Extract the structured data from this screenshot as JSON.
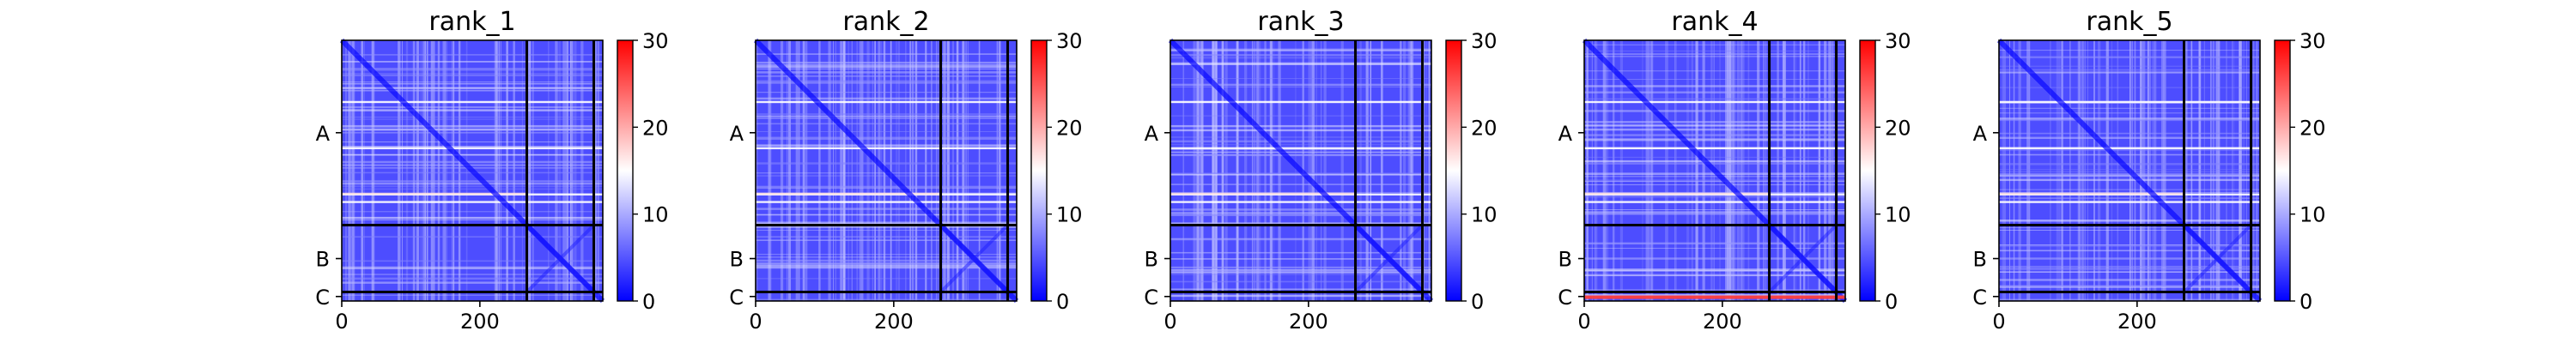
{
  "chart_data": {
    "type": "heatmap",
    "description_type": "pae_matrix_panels",
    "shared": {
      "x_ticks": [
        0,
        200
      ],
      "x_range": [
        0,
        378
      ],
      "y_range": [
        378,
        0
      ],
      "chain_labels": [
        "A",
        "B",
        "C"
      ],
      "chain_boundaries": [
        268,
        365
      ],
      "chain_label_positions": [
        134,
        316.5,
        371.5
      ],
      "colorbar": {
        "colormap": "bwr",
        "vmin": 0,
        "vmax": 30,
        "ticks": [
          "0",
          "10",
          "20",
          "30"
        ]
      },
      "grid": false
    },
    "panels": [
      {
        "title": "rank_1",
        "bright_rows": [
          88,
          155,
          222,
          233
        ],
        "hot_row": null
      },
      {
        "title": "rank_2",
        "bright_rows": [
          88,
          155,
          222,
          233
        ],
        "hot_row": null
      },
      {
        "title": "rank_3",
        "bright_rows": [
          88,
          155,
          222,
          233
        ],
        "hot_row": null
      },
      {
        "title": "rank_4",
        "bright_rows": [
          88,
          155,
          222,
          233
        ],
        "hot_row": 372
      },
      {
        "title": "rank_5",
        "bright_rows": [
          88,
          155,
          222,
          233
        ],
        "hot_row": null
      }
    ]
  }
}
